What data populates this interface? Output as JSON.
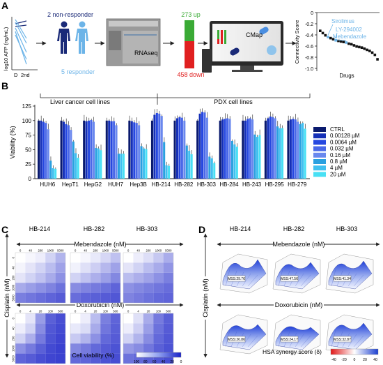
{
  "panels": {
    "a": {
      "label": "A",
      "y_axis_label": "log10 AFP (ng/mL)",
      "x_ticks": [
        "D",
        "2nd"
      ],
      "non_responder_text": "2 non-responder",
      "responder_text": "5 responder",
      "rnaseq_label": "RNAseq",
      "up_text": "273 up",
      "down_text": "458 down",
      "cmap_label": "CMap",
      "connectivity": {
        "ylabel": "Connectivity Score",
        "xlabel": "Drugs",
        "ticks": [
          "0",
          "-0.2",
          "-0.4",
          "-0.6",
          "-0.8",
          "-1.0"
        ],
        "annotations": [
          "Sirolimus",
          "LY-294002",
          "Mebendazole"
        ],
        "scores": [
          -0.33,
          -0.37,
          -0.41,
          -0.44,
          -0.46,
          -0.48,
          -0.5,
          -0.51,
          -0.52,
          -0.53,
          -0.54,
          -0.56,
          -0.57,
          -0.59,
          -0.61,
          -0.62,
          -0.63,
          -0.65,
          -0.67,
          -0.69,
          -0.72,
          -0.76,
          -0.84
        ],
        "highlight_indices": [
          3,
          6,
          10
        ]
      },
      "colors": {
        "non_responder": "#1a2a78",
        "responder": "#6cb4e8",
        "up": "#3aaa35",
        "down": "#e02020"
      }
    },
    "b": {
      "label": "B",
      "group_liver": "Liver cancer cell lines",
      "group_pdx": "PDX cell lines"
    },
    "c": {
      "label": "C",
      "columns": [
        "HB-214",
        "HB-282",
        "HB-303"
      ],
      "row1_drug": "Mebendazole (nM)",
      "row1_ticks": [
        "0",
        "40",
        "200",
        "1000",
        "5000"
      ],
      "row2_drug": "Doxorubicin (nM)",
      "row2_ticks": [
        "0",
        "4",
        "20",
        "100",
        "500"
      ],
      "y_label": "Cisplatin (nM)",
      "y_ticks": [
        "0",
        "40",
        "200",
        "1000",
        "5000"
      ],
      "colorbar_label": "Cell viability (%)",
      "colorbar_ticks": [
        "100",
        "80",
        "60",
        "40",
        "20",
        "0"
      ]
    },
    "d": {
      "label": "D",
      "columns": [
        "HB-214",
        "HB-282",
        "HB-303"
      ],
      "row1_drug": "Mebendazole (nM)",
      "row2_drug": "Doxorubicin (nM)",
      "y_label": "Cisplatin (nM)",
      "mss_row1": [
        "MSS:29.76",
        "MSS:47.56",
        "MSS:41.34"
      ],
      "mss_row2": [
        "MSS:26.86",
        "MSS:24.17",
        "MSS:32.87"
      ],
      "colorbar_label": "HSA synergy score (δ)",
      "colorbar_ticks": [
        "-40",
        "-20",
        "0",
        "20",
        "40"
      ]
    }
  },
  "chart_data": {
    "type": "bar",
    "title": "",
    "xlabel": "",
    "ylabel": "Viability (%)",
    "ylim": [
      0,
      125
    ],
    "yticks": [
      0,
      25,
      50,
      75,
      100,
      125
    ],
    "grid": false,
    "legend_position": "right",
    "categories": [
      "HUH6",
      "HepT1",
      "HepG2",
      "HUH7",
      "Hep3B",
      "HB-214",
      "HB-282",
      "HB-303",
      "HB-284",
      "HB-243",
      "HB-295",
      "HB-279"
    ],
    "series": [
      {
        "name": "CTRL",
        "color": "#0a1a6e",
        "values": [
          100,
          100,
          100,
          100,
          100,
          100,
          100,
          100,
          100,
          100,
          100,
          100
        ]
      },
      {
        "name": "0.00128 µM",
        "color": "#1530b8",
        "values": [
          100,
          98,
          99,
          100,
          99,
          110,
          104,
          112,
          102,
          100,
          104,
          102
        ]
      },
      {
        "name": "0.0064 µM",
        "color": "#2648e0",
        "values": [
          98,
          94,
          100,
          99,
          97,
          113,
          106,
          115,
          103,
          103,
          107,
          103
        ]
      },
      {
        "name": "0.032 µM",
        "color": "#4a68e8",
        "values": [
          96,
          92,
          101,
          99,
          96,
          112,
          105,
          114,
          104,
          104,
          106,
          102
        ]
      },
      {
        "name": "0.16 µM",
        "color": "#6a88ee",
        "values": [
          85,
          84,
          98,
          92,
          92,
          108,
          100,
          105,
          103,
          102,
          104,
          98
        ]
      },
      {
        "name": "0.8 µM",
        "color": "#2aa0e0",
        "values": [
          31,
          64,
          53,
          43,
          56,
          63,
          57,
          38,
          65,
          76,
          90,
          94
        ]
      },
      {
        "name": "4 µM",
        "color": "#40c0f0",
        "values": [
          18,
          44,
          52,
          43,
          52,
          23,
          48,
          35,
          59,
          72,
          87,
          96
        ]
      },
      {
        "name": "20 µM",
        "color": "#48e0f4",
        "values": [
          17,
          36,
          49,
          43,
          51,
          22,
          42,
          27,
          55,
          75,
          87,
          86
        ]
      }
    ]
  }
}
